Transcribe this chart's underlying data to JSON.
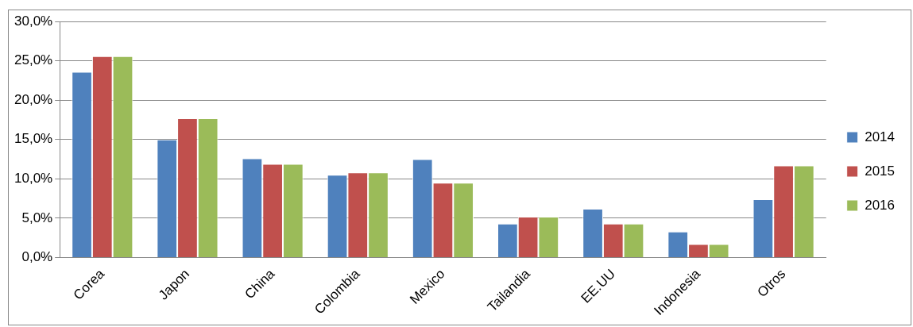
{
  "chart_data": {
    "type": "bar",
    "categories": [
      "Corea",
      "Japon",
      "China",
      "Colombia",
      "Mexico",
      "Tailandia",
      "EE.UU",
      "Indonesia",
      "Otros"
    ],
    "series": [
      {
        "name": "2014",
        "color": "#4f81bd",
        "values": [
          23.6,
          15.0,
          12.6,
          10.5,
          12.5,
          4.3,
          6.2,
          3.3,
          7.4
        ]
      },
      {
        "name": "2015",
        "color": "#c0504d",
        "values": [
          25.6,
          17.7,
          11.9,
          10.8,
          9.5,
          5.2,
          4.3,
          1.7,
          11.7
        ]
      },
      {
        "name": "2016",
        "color": "#9bbb59",
        "values": [
          25.6,
          17.7,
          11.9,
          10.8,
          9.5,
          5.2,
          4.3,
          1.7,
          11.7
        ]
      }
    ],
    "ylim": [
      0,
      30
    ],
    "yticks": [
      {
        "value": 0,
        "label": "0,0%"
      },
      {
        "value": 5,
        "label": "5,0%"
      },
      {
        "value": 10,
        "label": "10,0%"
      },
      {
        "value": 15,
        "label": "15,0%"
      },
      {
        "value": 20,
        "label": "20,0%"
      },
      {
        "value": 25,
        "label": "25,0%"
      },
      {
        "value": 30,
        "label": "30,0%"
      }
    ],
    "grid": "y",
    "legend": "right"
  }
}
